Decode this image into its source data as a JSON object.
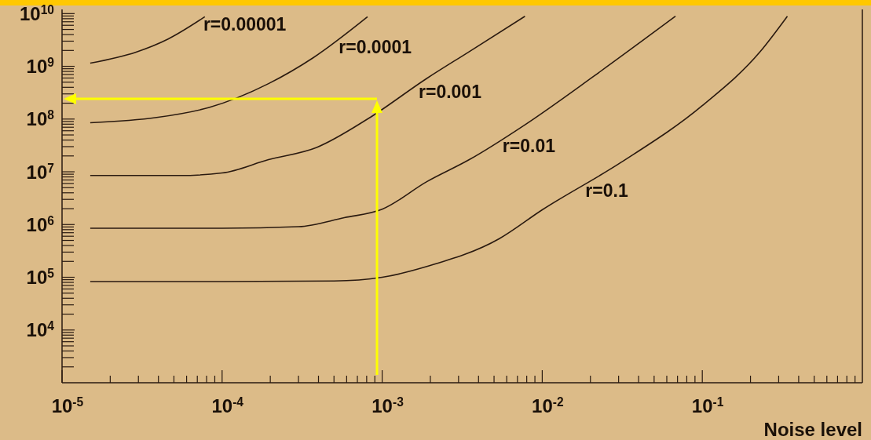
{
  "chart_data": {
    "type": "line",
    "xlabel": "Noise level",
    "log": "xy",
    "xlim": [
      1e-05,
      1
    ],
    "ylim": [
      1000,
      12000000000.0
    ],
    "xticks": [
      {
        "value": 1e-05,
        "label": "10$^{-5}$"
      },
      {
        "value": 2e-05,
        "label": null
      },
      {
        "value": 3e-05,
        "label": null
      },
      {
        "value": 4e-05,
        "label": null
      },
      {
        "value": 5e-05,
        "label": null
      },
      {
        "value": 6e-05,
        "label": null
      },
      {
        "value": 7e-05,
        "label": null
      },
      {
        "value": 8e-05,
        "label": null
      },
      {
        "value": 9e-05,
        "label": null
      },
      {
        "value": 0.0001,
        "label": "10$^{-4}$"
      },
      {
        "value": 0.0002,
        "label": null
      },
      {
        "value": 0.0003,
        "label": null
      },
      {
        "value": 0.0004,
        "label": null
      },
      {
        "value": 0.0005,
        "label": null
      },
      {
        "value": 0.0006,
        "label": null
      },
      {
        "value": 0.0007,
        "label": null
      },
      {
        "value": 0.0008,
        "label": null
      },
      {
        "value": 0.0009,
        "label": null
      },
      {
        "value": 0.001,
        "label": "10$^{-3}$"
      },
      {
        "value": 0.002,
        "label": null
      },
      {
        "value": 0.003,
        "label": null
      },
      {
        "value": 0.004,
        "label": null
      },
      {
        "value": 0.005,
        "label": null
      },
      {
        "value": 0.006,
        "label": null
      },
      {
        "value": 0.007,
        "label": null
      },
      {
        "value": 0.008,
        "label": null
      },
      {
        "value": 0.009,
        "label": null
      },
      {
        "value": 0.01,
        "label": "10$^{-2}$"
      },
      {
        "value": 0.02,
        "label": null
      },
      {
        "value": 0.03,
        "label": null
      },
      {
        "value": 0.04,
        "label": null
      },
      {
        "value": 0.05,
        "label": null
      },
      {
        "value": 0.06,
        "label": null
      },
      {
        "value": 0.07,
        "label": null
      },
      {
        "value": 0.08,
        "label": null
      },
      {
        "value": 0.09,
        "label": null
      },
      {
        "value": 0.1,
        "label": "10$^{-1}$"
      },
      {
        "value": 0.2,
        "label": null
      },
      {
        "value": 0.3,
        "label": null
      },
      {
        "value": 0.4,
        "label": null
      },
      {
        "value": 0.5,
        "label": null
      },
      {
        "value": 0.6,
        "label": null
      },
      {
        "value": 0.7,
        "label": null
      },
      {
        "value": 0.8,
        "label": null
      },
      {
        "value": 0.9,
        "label": null
      }
    ],
    "yticks": [
      {
        "value": 2000,
        "label": null
      },
      {
        "value": 3000,
        "label": null
      },
      {
        "value": 4000,
        "label": null
      },
      {
        "value": 5000,
        "label": null
      },
      {
        "value": 6000,
        "label": null
      },
      {
        "value": 7000,
        "label": null
      },
      {
        "value": 8000,
        "label": null
      },
      {
        "value": 9000,
        "label": null
      },
      {
        "value": 10000.0,
        "label": "10$^{4}$"
      },
      {
        "value": 20000.0,
        "label": null
      },
      {
        "value": 30000.0,
        "label": null
      },
      {
        "value": 40000.0,
        "label": null
      },
      {
        "value": 50000.0,
        "label": null
      },
      {
        "value": 60000.0,
        "label": null
      },
      {
        "value": 70000.0,
        "label": null
      },
      {
        "value": 80000.0,
        "label": null
      },
      {
        "value": 90000.0,
        "label": null
      },
      {
        "value": 100000.0,
        "label": "10$^{5}$"
      },
      {
        "value": 200000.0,
        "label": null
      },
      {
        "value": 300000.0,
        "label": null
      },
      {
        "value": 400000.0,
        "label": null
      },
      {
        "value": 500000.0,
        "label": null
      },
      {
        "value": 600000.0,
        "label": null
      },
      {
        "value": 700000.0,
        "label": null
      },
      {
        "value": 800000.0,
        "label": null
      },
      {
        "value": 900000.0,
        "label": null
      },
      {
        "value": 1000000.0,
        "label": "10$^{6}$"
      },
      {
        "value": 2000000.0,
        "label": null
      },
      {
        "value": 3000000.0,
        "label": null
      },
      {
        "value": 4000000.0,
        "label": null
      },
      {
        "value": 5000000.0,
        "label": null
      },
      {
        "value": 6000000.0,
        "label": null
      },
      {
        "value": 7000000.0,
        "label": null
      },
      {
        "value": 8000000.0,
        "label": null
      },
      {
        "value": 9000000.0,
        "label": null
      },
      {
        "value": 10000000.0,
        "label": "10$^{7}$"
      },
      {
        "value": 20000000.0,
        "label": null
      },
      {
        "value": 30000000.0,
        "label": null
      },
      {
        "value": 40000000.0,
        "label": null
      },
      {
        "value": 50000000.0,
        "label": null
      },
      {
        "value": 60000000.0,
        "label": null
      },
      {
        "value": 70000000.0,
        "label": null
      },
      {
        "value": 80000000.0,
        "label": null
      },
      {
        "value": 90000000.0,
        "label": null
      },
      {
        "value": 100000000.0,
        "label": "10$^{8}$"
      },
      {
        "value": 200000000.0,
        "label": null
      },
      {
        "value": 300000000.0,
        "label": null
      },
      {
        "value": 400000000.0,
        "label": null
      },
      {
        "value": 500000000.0,
        "label": null
      },
      {
        "value": 600000000.0,
        "label": null
      },
      {
        "value": 700000000.0,
        "label": null
      },
      {
        "value": 800000000.0,
        "label": null
      },
      {
        "value": 900000000.0,
        "label": null
      },
      {
        "value": 1000000000.0,
        "label": "10$^{9}$"
      },
      {
        "value": 2000000000.0,
        "label": null
      },
      {
        "value": 3000000000.0,
        "label": null
      },
      {
        "value": 4000000000.0,
        "label": null
      },
      {
        "value": 5000000000.0,
        "label": null
      },
      {
        "value": 6000000000.0,
        "label": null
      },
      {
        "value": 7000000000.0,
        "label": null
      },
      {
        "value": 8000000000.0,
        "label": null
      },
      {
        "value": 9000000000.0,
        "label": null
      },
      {
        "value": 10000000000.0,
        "label": "10$^{10}$"
      }
    ],
    "grid": false,
    "legend": false,
    "marker": "none",
    "line_style": "solid",
    "series": [
      {
        "name": "r=0.00001",
        "color": "#2a1a10",
        "x": [
          1.5e-05,
          2.9e-05,
          4.6e-05,
          7.8e-05
        ],
        "values": [
          1150000000.0,
          1860000000.0,
          3300000000.0,
          8700000000.0
        ]
      },
      {
        "name": "r=0.0001",
        "color": "#2a1a10",
        "x": [
          1.5e-05,
          3.9e-05,
          8.3e-05,
          0.000195,
          0.00037,
          0.00081
        ],
        "values": [
          85000000.0,
          107000000.0,
          166000000.0,
          470000000.0,
          1450000000.0,
          8700000000.0
        ]
      },
      {
        "name": "r=0.001",
        "color": "#2a1a10",
        "x": [
          1.5e-05,
          5.4e-05,
          0.0001,
          0.000195,
          0.00039,
          0.00081,
          0.0019,
          0.0035,
          0.0078
        ],
        "values": [
          8500000.0,
          8500000.0,
          9500000.0,
          17000000.0,
          29000000.0,
          100000000.0,
          590000000.0,
          1900000000.0,
          8900000000.0
        ]
      },
      {
        "name": "r=0.01",
        "color": "#2a1a10",
        "x": [
          1.5e-05,
          0.0001,
          0.0003,
          0.00058,
          0.001,
          0.0019,
          0.0035,
          0.0078,
          0.021,
          0.068
        ],
        "values": [
          850000.0,
          850000.0,
          910000.0,
          1350000.0,
          1950000.0,
          6500000.0,
          17000000.0,
          78000000.0,
          650000000.0,
          8900000000.0
        ]
      },
      {
        "name": "r=0.1",
        "color": "#2a1a10",
        "x": [
          1.5e-05,
          0.0001,
          0.0005,
          0.001,
          0.0019,
          0.0054,
          0.01,
          0.031,
          0.1,
          0.23,
          0.34
        ],
        "values": [
          83000.0,
          83000.0,
          85000.0,
          100000.0,
          160000.0,
          540000.0,
          1900000.0,
          15000000.0,
          180000000.0,
          1900000000.0,
          8900000000.0
        ]
      }
    ]
  }
}
